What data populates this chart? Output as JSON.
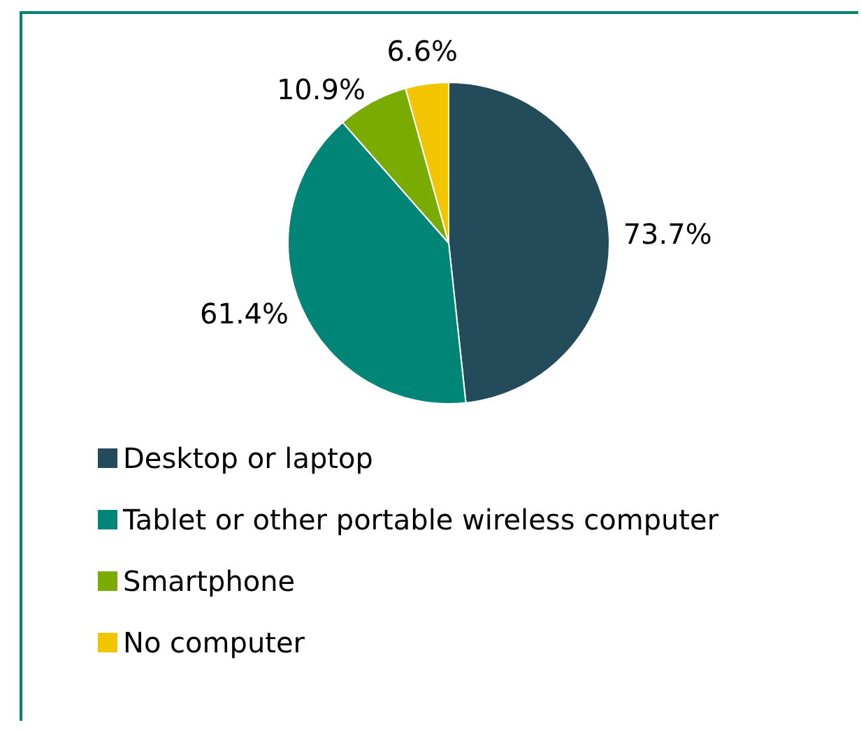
{
  "chart_data": {
    "type": "pie",
    "categories": [
      "Desktop or laptop",
      "Tablet or other portable wireless computer",
      "Smartphone",
      "No computer"
    ],
    "values": [
      73.7,
      61.4,
      10.9,
      6.6
    ],
    "value_labels": [
      "73.7%",
      "61.4%",
      "10.9%",
      "6.6%"
    ],
    "colors": [
      "#234b5a",
      "#008577",
      "#7aab00",
      "#f2c500"
    ],
    "legend": "bottom left"
  }
}
